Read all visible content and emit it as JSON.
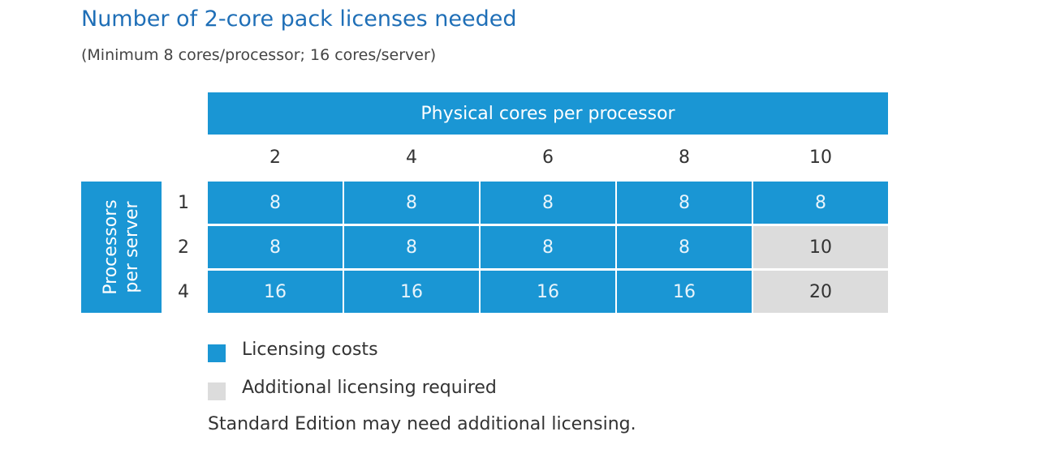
{
  "chart_data": {
    "type": "table",
    "title": "Number of 2-core pack licenses needed",
    "subtitle": "(Minimum 8 cores/processor; 16 cores/server)",
    "column_header": "Physical cores per processor",
    "row_header": "Processors\nper server",
    "columns": [
      "2",
      "4",
      "6",
      "8",
      "10"
    ],
    "rows": [
      {
        "label": "1",
        "values": [
          8,
          8,
          8,
          8,
          8
        ],
        "status": [
          "cost",
          "cost",
          "cost",
          "cost",
          "cost"
        ]
      },
      {
        "label": "2",
        "values": [
          8,
          8,
          8,
          8,
          10
        ],
        "status": [
          "cost",
          "cost",
          "cost",
          "cost",
          "additional"
        ]
      },
      {
        "label": "4",
        "values": [
          16,
          16,
          16,
          16,
          20
        ],
        "status": [
          "cost",
          "cost",
          "cost",
          "cost",
          "additional"
        ]
      }
    ],
    "legend": [
      {
        "key": "cost",
        "label": "Licensing costs",
        "color": "#1a96d4"
      },
      {
        "key": "additional",
        "label": "Additional licensing required",
        "color": "#dcdcdc"
      }
    ],
    "note": "Standard Edition may need additional licensing."
  }
}
